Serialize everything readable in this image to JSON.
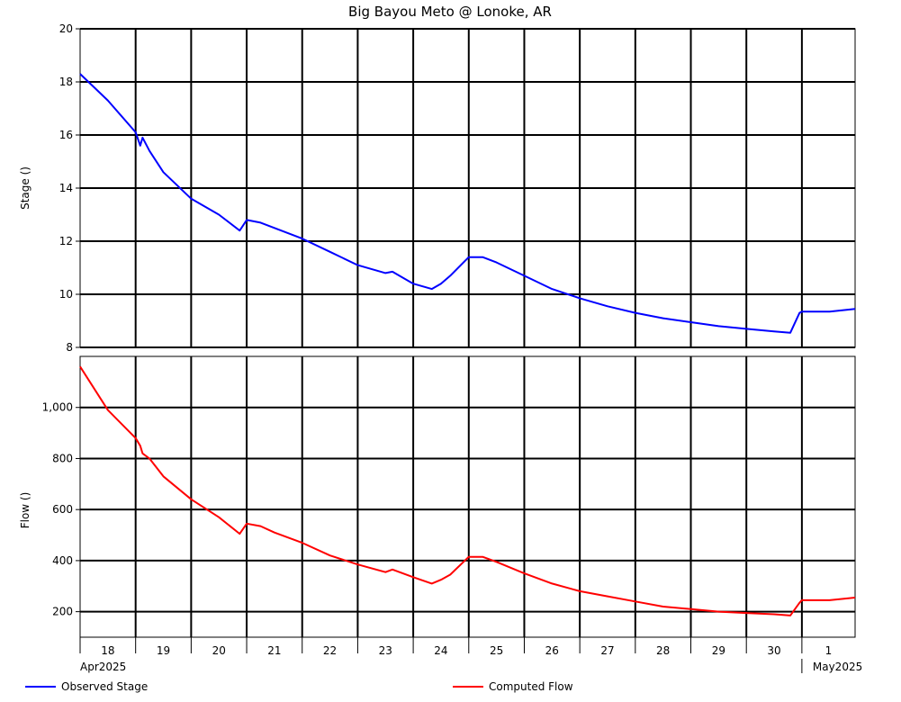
{
  "chart_data": {
    "type": "line",
    "title": "Big Bayou Meto @ Lonoke, AR",
    "x_tick_labels": [
      "18",
      "19",
      "20",
      "21",
      "22",
      "23",
      "24",
      "25",
      "26",
      "27",
      "28",
      "29",
      "30",
      "1"
    ],
    "month_labels": [
      "Apr2025",
      "May2025"
    ],
    "xlim": [
      "2025-04-18 00:00",
      "2025-05-01 23:00"
    ],
    "grid": true,
    "legend_position": "bottom",
    "panels": [
      {
        "ylabel": "Stage ()",
        "ylim": [
          8,
          20
        ],
        "y_ticks": [
          8,
          10,
          12,
          14,
          16,
          18,
          20
        ],
        "y_tick_labels": [
          "8",
          "10",
          "12",
          "14",
          "16",
          "18",
          "20"
        ],
        "series": [
          {
            "name": "Observed Stage",
            "color": "#0000ff",
            "x": [
              "2025-04-18 00:00",
              "2025-04-18 12:00",
              "2025-04-19 00:00",
              "2025-04-19 02:00",
              "2025-04-19 03:00",
              "2025-04-19 06:00",
              "2025-04-19 12:00",
              "2025-04-20 00:00",
              "2025-04-20 12:00",
              "2025-04-20 21:00",
              "2025-04-21 00:00",
              "2025-04-21 06:00",
              "2025-04-21 12:00",
              "2025-04-22 00:00",
              "2025-04-22 12:00",
              "2025-04-23 00:00",
              "2025-04-23 12:00",
              "2025-04-23 15:00",
              "2025-04-24 00:00",
              "2025-04-24 08:00",
              "2025-04-24 12:00",
              "2025-04-24 16:00",
              "2025-04-25 00:00",
              "2025-04-25 06:00",
              "2025-04-25 12:00",
              "2025-04-26 00:00",
              "2025-04-26 12:00",
              "2025-04-27 00:00",
              "2025-04-27 12:00",
              "2025-04-28 00:00",
              "2025-04-28 12:00",
              "2025-04-29 00:00",
              "2025-04-29 12:00",
              "2025-04-30 00:00",
              "2025-04-30 12:00",
              "2025-04-30 19:00",
              "2025-04-30 23:00",
              "2025-05-01 00:00",
              "2025-05-01 12:00",
              "2025-05-01 23:00"
            ],
            "values": [
              18.3,
              17.3,
              16.1,
              15.6,
              15.9,
              15.4,
              14.6,
              13.6,
              13.0,
              12.4,
              12.8,
              12.7,
              12.5,
              12.1,
              11.6,
              11.1,
              10.8,
              10.85,
              10.4,
              10.2,
              10.4,
              10.7,
              11.4,
              11.4,
              11.2,
              10.7,
              10.2,
              9.85,
              9.55,
              9.3,
              9.1,
              8.95,
              8.8,
              8.7,
              8.6,
              8.55,
              9.3,
              9.35,
              9.35,
              9.45
            ]
          }
        ]
      },
      {
        "ylabel": "Flow ()",
        "ylim": [
          100,
          1200
        ],
        "y_ticks": [
          200,
          400,
          600,
          800,
          1000
        ],
        "y_tick_labels": [
          "200",
          "400",
          "600",
          "800",
          "1,000"
        ],
        "series": [
          {
            "name": "Computed Flow",
            "color": "#ff0000",
            "x": [
              "2025-04-18 00:00",
              "2025-04-18 12:00",
              "2025-04-19 00:00",
              "2025-04-19 02:00",
              "2025-04-19 03:00",
              "2025-04-19 06:00",
              "2025-04-19 12:00",
              "2025-04-20 00:00",
              "2025-04-20 12:00",
              "2025-04-20 21:00",
              "2025-04-21 00:00",
              "2025-04-21 06:00",
              "2025-04-21 12:00",
              "2025-04-22 00:00",
              "2025-04-22 12:00",
              "2025-04-23 00:00",
              "2025-04-23 12:00",
              "2025-04-23 15:00",
              "2025-04-24 00:00",
              "2025-04-24 08:00",
              "2025-04-24 12:00",
              "2025-04-24 16:00",
              "2025-04-25 00:00",
              "2025-04-25 06:00",
              "2025-04-25 12:00",
              "2025-04-26 00:00",
              "2025-04-26 12:00",
              "2025-04-27 00:00",
              "2025-04-27 12:00",
              "2025-04-28 00:00",
              "2025-04-28 12:00",
              "2025-04-29 00:00",
              "2025-04-29 12:00",
              "2025-04-30 00:00",
              "2025-04-30 12:00",
              "2025-04-30 19:00",
              "2025-04-30 23:00",
              "2025-05-01 00:00",
              "2025-05-01 12:00",
              "2025-05-01 23:00"
            ],
            "values": [
              1160,
              990,
              880,
              850,
              820,
              800,
              730,
              640,
              570,
              505,
              545,
              535,
              510,
              470,
              420,
              385,
              355,
              365,
              335,
              310,
              325,
              345,
              415,
              415,
              395,
              350,
              310,
              280,
              260,
              240,
              220,
              210,
              200,
              195,
              190,
              185,
              235,
              245,
              245,
              255
            ]
          }
        ]
      }
    ]
  }
}
